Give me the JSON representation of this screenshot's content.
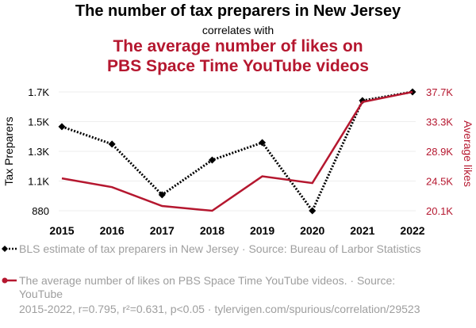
{
  "title": {
    "main": "The number of tax preparers in New Jersey",
    "connector": "correlates with",
    "sub_line1": "The average number of likes on",
    "sub_line2": "PBS Space Time YouTube videos"
  },
  "colors": {
    "series1": "#000000",
    "series2": "#b5172f",
    "grid": "#eeeeee",
    "muted_text": "#9e9e9e"
  },
  "chart_data": {
    "type": "line",
    "x": [
      "2015",
      "2016",
      "2017",
      "2018",
      "2019",
      "2020",
      "2021",
      "2022"
    ],
    "series": [
      {
        "name": "BLS estimate of tax preparers in New Jersey",
        "axis": "left",
        "values": [
          1460,
          1340,
          990,
          1230,
          1350,
          880,
          1640,
          1700
        ],
        "style": "dotted",
        "marker": "diamond"
      },
      {
        "name": "The average number of likes on PBS Space Time YouTube videos",
        "axis": "right",
        "values": [
          24900,
          23600,
          20800,
          20100,
          25200,
          24200,
          36200,
          37700
        ],
        "style": "solid",
        "marker": "none"
      }
    ],
    "ylabel_left": "Tax Preparers",
    "ylabel_right": "Average likes",
    "ylim_left": [
      880,
      1700
    ],
    "ylim_right": [
      20100,
      37700
    ],
    "yticks_left": [
      "880",
      "1.1K",
      "1.3K",
      "1.5K",
      "1.7K"
    ],
    "yticks_right": [
      "20.1K",
      "24.5K",
      "28.9K",
      "33.3K",
      "37.7K"
    ],
    "grid": true
  },
  "legend": {
    "item1": "BLS estimate of tax preparers in New Jersey · Source: Bureau of Larbor Statistics",
    "item2": "The average number of likes on PBS Space Time YouTube videos. · Source: YouTube"
  },
  "footer": "2015-2022, r=0.795, r²=0.631, p<0.05 · tylervigen.com/spurious/correlation/29523"
}
